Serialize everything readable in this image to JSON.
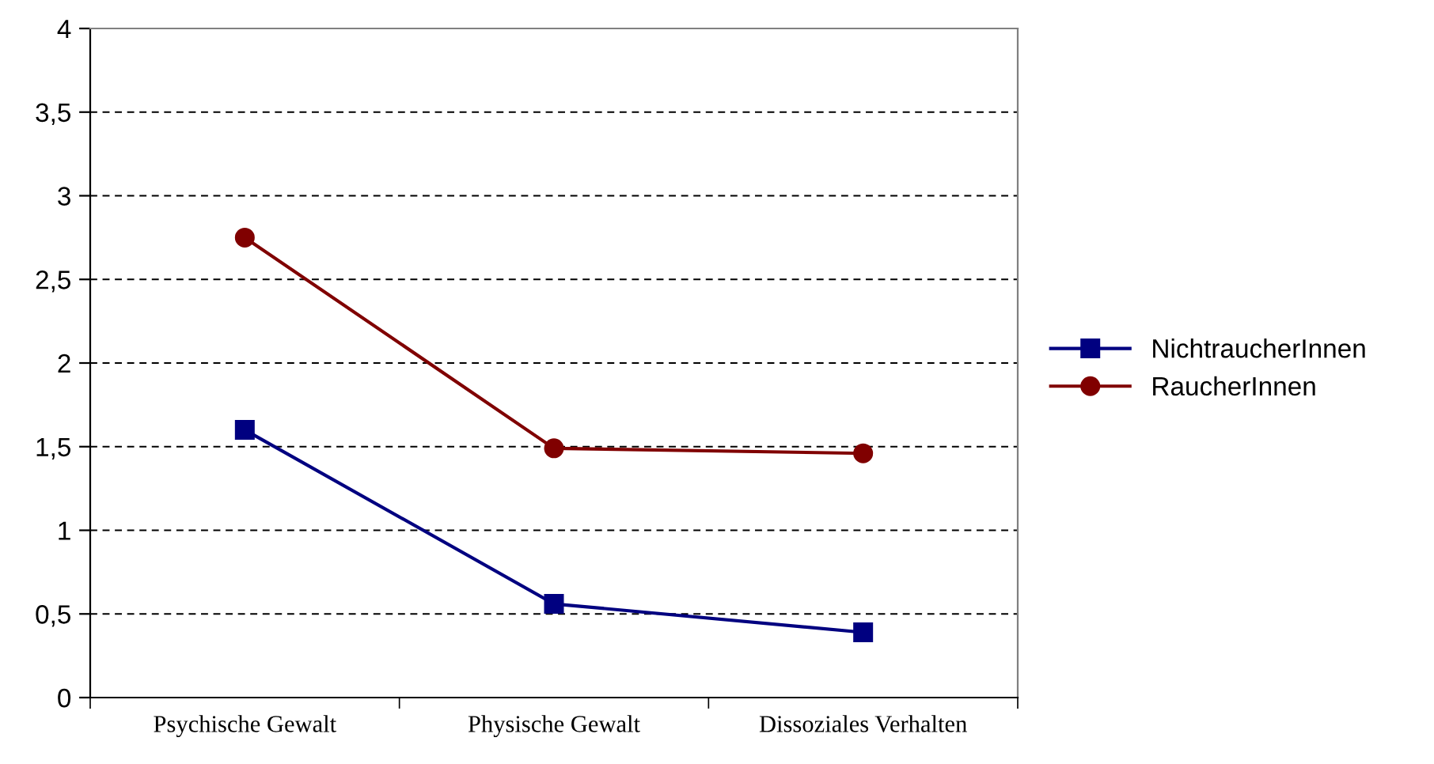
{
  "chart_data": {
    "type": "line",
    "categories": [
      "Psychische Gewalt",
      "Physische Gewalt",
      "Dissoziales Verhalten"
    ],
    "series": [
      {
        "name": "NichtraucherInnen",
        "color": "#000080",
        "marker": "square",
        "values": [
          1.6,
          0.56,
          0.39
        ]
      },
      {
        "name": "RaucherInnen",
        "color": "#800000",
        "marker": "circle",
        "values": [
          2.75,
          1.49,
          1.46
        ]
      }
    ],
    "ylim": [
      0,
      4
    ],
    "yticks": [
      {
        "value": 0,
        "label": "0"
      },
      {
        "value": 0.5,
        "label": "0,5"
      },
      {
        "value": 1,
        "label": "1"
      },
      {
        "value": 1.5,
        "label": "1,5"
      },
      {
        "value": 2,
        "label": "2"
      },
      {
        "value": 2.5,
        "label": "2,5"
      },
      {
        "value": 3,
        "label": "3"
      },
      {
        "value": 3.5,
        "label": "3,5"
      },
      {
        "value": 4,
        "label": "4"
      }
    ],
    "grid": "y",
    "legend": "right",
    "line_style": "solid"
  }
}
